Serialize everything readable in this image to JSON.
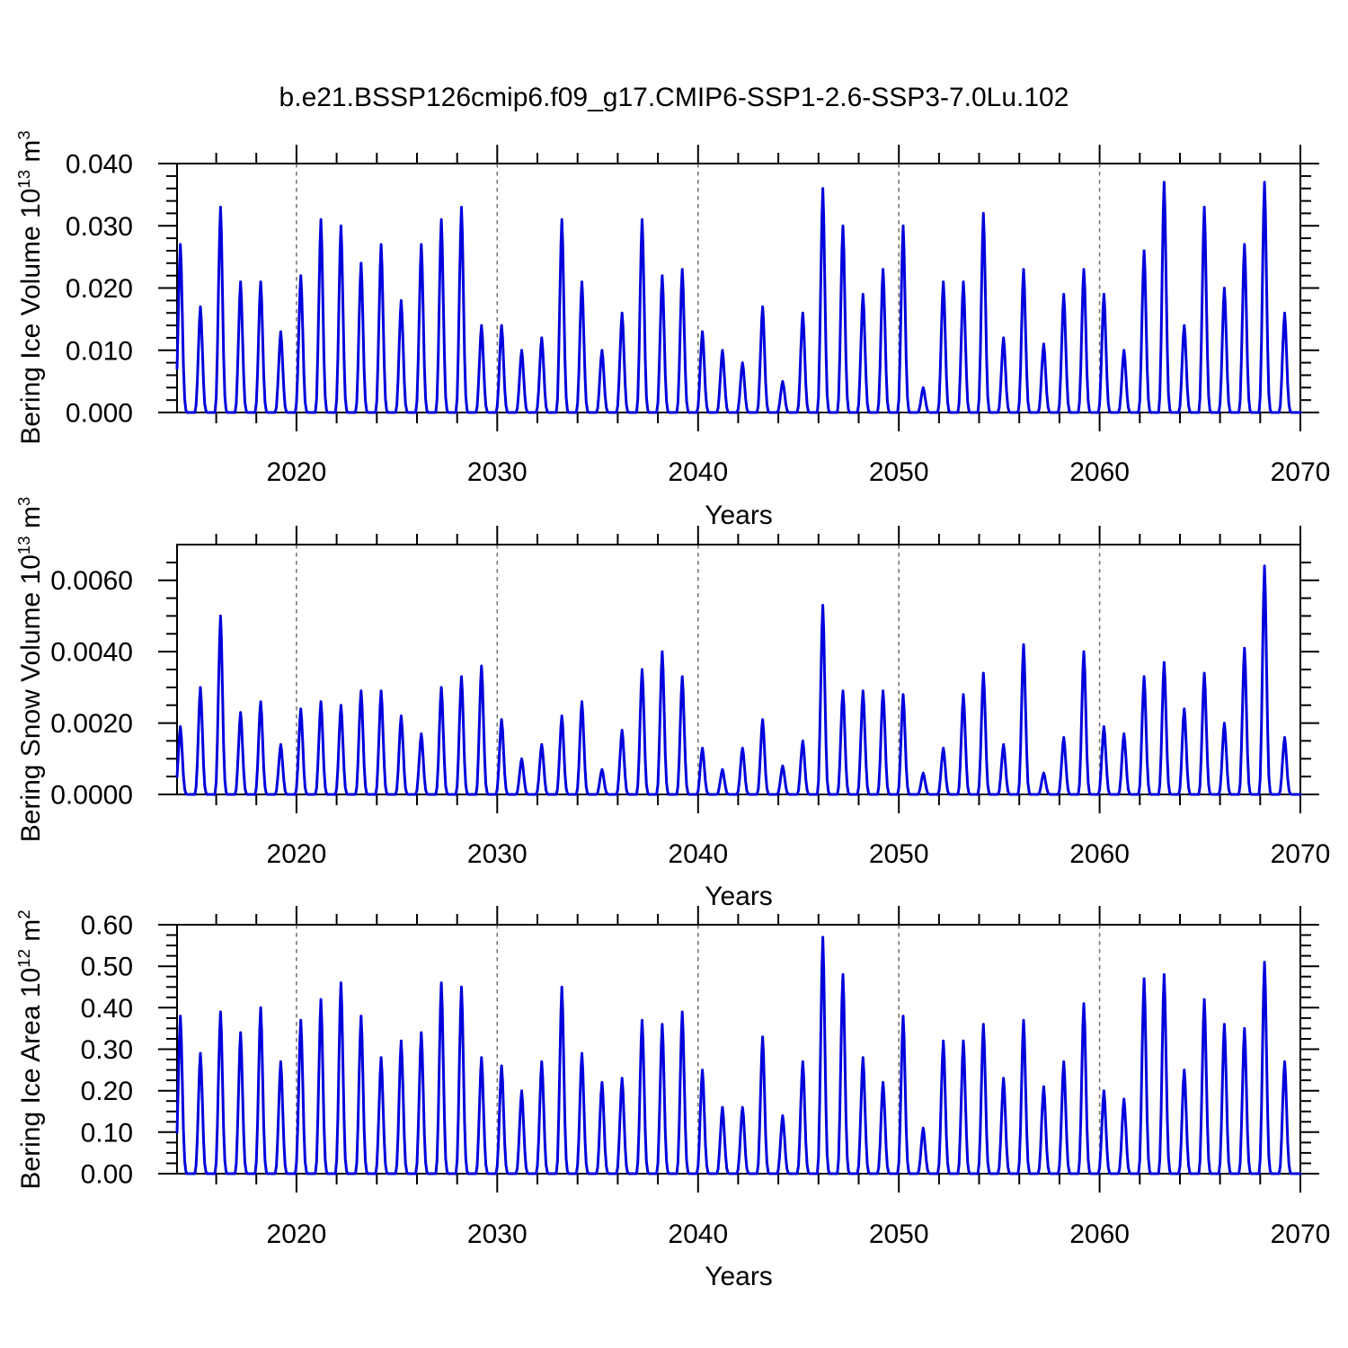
{
  "title": "b.e21.BSSP126cmip6.f09_g17.CMIP6-SSP1-2.6-SSP3-7.0Lu.102",
  "figure": {
    "background_color": "#ffffff",
    "line_color": "#0000dd",
    "axis_color": "#000000",
    "gridline_color": "#777777"
  },
  "panels": [
    {
      "name": "bering-ice-volume",
      "ylabel": {
        "base": "Bering Ice Volume 10",
        "exp": "13",
        "unit": " m",
        "unit_exp": "3"
      },
      "xlabel": "Years",
      "xlim": [
        2014.05,
        2070
      ],
      "ylim": [
        0,
        0.04
      ],
      "xticks": {
        "labels": [
          "2020",
          "2030",
          "2040",
          "2050",
          "2060",
          "2070"
        ],
        "values": [
          2020,
          2030,
          2040,
          2050,
          2060,
          2070
        ],
        "minor_step": 2
      },
      "yticks": {
        "labels": [
          "0.000",
          "0.010",
          "0.020",
          "0.030",
          "0.040"
        ],
        "values": [
          0,
          0.01,
          0.02,
          0.03,
          0.04
        ],
        "minor_step": 0.002
      },
      "grid_years": [
        2020,
        2030,
        2040,
        2050,
        2060
      ]
    },
    {
      "name": "bering-snow-volume",
      "ylabel": {
        "base": "Bering Snow Volume 10",
        "exp": "13",
        "unit": " m",
        "unit_exp": "3"
      },
      "xlabel": "Years",
      "xlim": [
        2014.05,
        2070
      ],
      "ylim": [
        0,
        0.007
      ],
      "xticks": {
        "labels": [
          "2020",
          "2030",
          "2040",
          "2050",
          "2060",
          "2070"
        ],
        "values": [
          2020,
          2030,
          2040,
          2050,
          2060,
          2070
        ],
        "minor_step": 2
      },
      "yticks": {
        "labels": [
          "0.0000",
          "0.0020",
          "0.0040",
          "0.0060"
        ],
        "values": [
          0,
          0.002,
          0.004,
          0.006
        ],
        "minor_step": 0.0005
      },
      "grid_years": [
        2020,
        2030,
        2040,
        2050,
        2060
      ]
    },
    {
      "name": "bering-ice-area",
      "ylabel": {
        "base": "Bering Ice Area 10",
        "exp": "12",
        "unit": " m",
        "unit_exp": "2"
      },
      "xlabel": "Years",
      "xlim": [
        2014.05,
        2070
      ],
      "ylim": [
        0,
        0.6
      ],
      "xticks": {
        "labels": [
          "2020",
          "2030",
          "2040",
          "2050",
          "2060",
          "2070"
        ],
        "values": [
          2020,
          2030,
          2040,
          2050,
          2060,
          2070
        ],
        "minor_step": 2
      },
      "yticks": {
        "labels": [
          "0.00",
          "0.10",
          "0.20",
          "0.30",
          "0.40",
          "0.50",
          "0.60"
        ],
        "values": [
          0,
          0.1,
          0.2,
          0.3,
          0.4,
          0.5,
          0.6
        ],
        "minor_step": 0.025
      },
      "grid_years": [
        2020,
        2030,
        2040,
        2050,
        2060
      ]
    }
  ],
  "chart_data": [
    {
      "type": "line",
      "title": "b.e21.BSSP126cmip6.f09_g17.CMIP6-SSP1-2.6-SSP3-7.0Lu.102",
      "series_name": "Bering Ice Volume",
      "ylabel": "Bering Ice Volume 10^13 m^3",
      "xlabel": "Years",
      "xlim": [
        2014.05,
        2070
      ],
      "ylim": [
        0,
        0.04
      ],
      "grid": "dashed vertical lines at decades",
      "seasonality": "annual cycle: winter maximum listed below, summer minimum 0 every year",
      "years": [
        2014,
        2015,
        2016,
        2017,
        2018,
        2019,
        2020,
        2021,
        2022,
        2023,
        2024,
        2025,
        2026,
        2027,
        2028,
        2029,
        2030,
        2031,
        2032,
        2033,
        2034,
        2035,
        2036,
        2037,
        2038,
        2039,
        2040,
        2041,
        2042,
        2043,
        2044,
        2045,
        2046,
        2047,
        2048,
        2049,
        2050,
        2051,
        2052,
        2053,
        2054,
        2055,
        2056,
        2057,
        2058,
        2059,
        2060,
        2061,
        2062,
        2063,
        2064,
        2065,
        2066,
        2067,
        2068,
        2069
      ],
      "annual_peak_values": [
        0.027,
        0.017,
        0.033,
        0.021,
        0.021,
        0.013,
        0.022,
        0.031,
        0.03,
        0.024,
        0.027,
        0.018,
        0.027,
        0.031,
        0.033,
        0.014,
        0.014,
        0.01,
        0.012,
        0.031,
        0.021,
        0.01,
        0.016,
        0.031,
        0.022,
        0.023,
        0.013,
        0.01,
        0.008,
        0.017,
        0.005,
        0.016,
        0.036,
        0.03,
        0.019,
        0.023,
        0.03,
        0.004,
        0.021,
        0.021,
        0.032,
        0.012,
        0.023,
        0.011,
        0.019,
        0.023,
        0.019,
        0.01,
        0.026,
        0.037,
        0.014,
        0.033,
        0.02,
        0.027,
        0.037,
        0.016
      ],
      "annual_min_value": 0
    },
    {
      "type": "line",
      "series_name": "Bering Snow Volume",
      "ylabel": "Bering Snow Volume 10^13 m^3",
      "xlabel": "Years",
      "xlim": [
        2014.05,
        2070
      ],
      "ylim": [
        0,
        0.007
      ],
      "grid": "dashed vertical lines at decades",
      "seasonality": "annual cycle: winter maximum listed below, summer minimum 0 every year",
      "years": [
        2014,
        2015,
        2016,
        2017,
        2018,
        2019,
        2020,
        2021,
        2022,
        2023,
        2024,
        2025,
        2026,
        2027,
        2028,
        2029,
        2030,
        2031,
        2032,
        2033,
        2034,
        2035,
        2036,
        2037,
        2038,
        2039,
        2040,
        2041,
        2042,
        2043,
        2044,
        2045,
        2046,
        2047,
        2048,
        2049,
        2050,
        2051,
        2052,
        2053,
        2054,
        2055,
        2056,
        2057,
        2058,
        2059,
        2060,
        2061,
        2062,
        2063,
        2064,
        2065,
        2066,
        2067,
        2068,
        2069
      ],
      "annual_peak_values": [
        0.0019,
        0.003,
        0.005,
        0.0023,
        0.0026,
        0.0014,
        0.0024,
        0.0026,
        0.0025,
        0.0029,
        0.0029,
        0.0022,
        0.0017,
        0.003,
        0.0033,
        0.0036,
        0.0021,
        0.001,
        0.0014,
        0.0022,
        0.0026,
        0.0007,
        0.0018,
        0.0035,
        0.004,
        0.0033,
        0.0013,
        0.0007,
        0.0013,
        0.0021,
        0.0008,
        0.0015,
        0.0053,
        0.0029,
        0.0029,
        0.0029,
        0.0028,
        0.0006,
        0.0013,
        0.0028,
        0.0034,
        0.0014,
        0.0042,
        0.0006,
        0.0016,
        0.004,
        0.0019,
        0.0017,
        0.0033,
        0.0037,
        0.0024,
        0.0034,
        0.002,
        0.0041,
        0.0064,
        0.0016
      ],
      "annual_min_value": 0
    },
    {
      "type": "line",
      "series_name": "Bering Ice Area",
      "ylabel": "Bering Ice Area 10^12 m^2",
      "xlabel": "Years",
      "xlim": [
        2014.05,
        2070
      ],
      "ylim": [
        0,
        0.6
      ],
      "grid": "dashed vertical lines at decades",
      "seasonality": "annual cycle: winter maximum listed below, summer minimum 0 every year",
      "years": [
        2014,
        2015,
        2016,
        2017,
        2018,
        2019,
        2020,
        2021,
        2022,
        2023,
        2024,
        2025,
        2026,
        2027,
        2028,
        2029,
        2030,
        2031,
        2032,
        2033,
        2034,
        2035,
        2036,
        2037,
        2038,
        2039,
        2040,
        2041,
        2042,
        2043,
        2044,
        2045,
        2046,
        2047,
        2048,
        2049,
        2050,
        2051,
        2052,
        2053,
        2054,
        2055,
        2056,
        2057,
        2058,
        2059,
        2060,
        2061,
        2062,
        2063,
        2064,
        2065,
        2066,
        2067,
        2068,
        2069
      ],
      "annual_peak_values": [
        0.38,
        0.29,
        0.39,
        0.34,
        0.4,
        0.27,
        0.37,
        0.42,
        0.46,
        0.38,
        0.28,
        0.32,
        0.34,
        0.46,
        0.45,
        0.28,
        0.26,
        0.2,
        0.27,
        0.45,
        0.29,
        0.22,
        0.23,
        0.37,
        0.36,
        0.39,
        0.25,
        0.16,
        0.16,
        0.33,
        0.14,
        0.27,
        0.57,
        0.48,
        0.28,
        0.22,
        0.38,
        0.11,
        0.32,
        0.32,
        0.36,
        0.23,
        0.37,
        0.21,
        0.27,
        0.41,
        0.2,
        0.18,
        0.47,
        0.48,
        0.25,
        0.42,
        0.36,
        0.35,
        0.51,
        0.27
      ],
      "annual_min_value": 0
    }
  ]
}
